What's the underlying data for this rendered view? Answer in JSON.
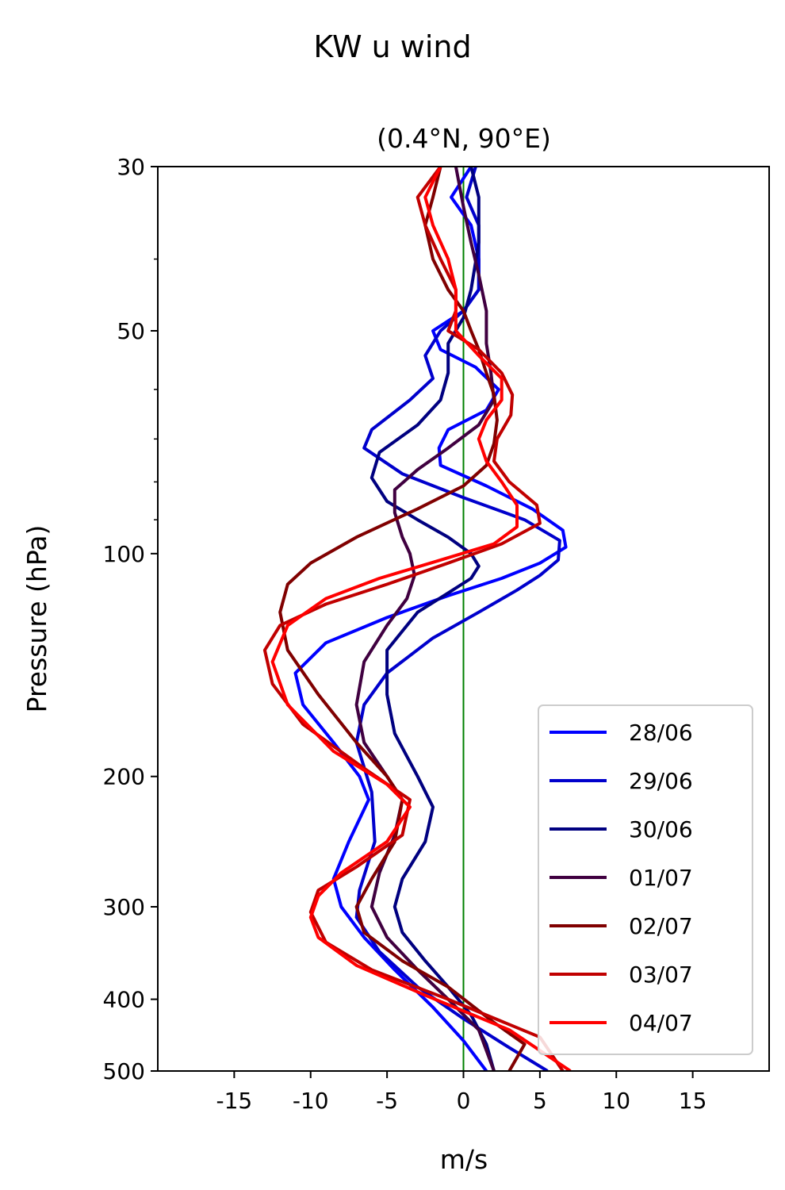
{
  "chart_data": {
    "type": "line",
    "title": "KW u wind",
    "subtitle": "(0.4°N, 90°E)",
    "xlabel": "m/s",
    "ylabel": "Pressure (hPa)",
    "xlim": [
      -20,
      20
    ],
    "ylim": [
      500,
      30
    ],
    "y_scale": "log",
    "x_ticks": [
      -15,
      -10,
      -5,
      0,
      5,
      10,
      15
    ],
    "y_ticks": [
      30,
      50,
      100,
      200,
      300,
      400,
      500
    ],
    "zero_line_color": "#008000",
    "legend": "lower right",
    "grid": false,
    "series": [
      {
        "name": "28/06",
        "color": "#0000ff",
        "points": [
          [
            0.5,
            30
          ],
          [
            -0.8,
            33
          ],
          [
            0.5,
            36
          ],
          [
            1,
            40
          ],
          [
            1,
            44
          ],
          [
            0,
            47
          ],
          [
            -2,
            50
          ],
          [
            -1.5,
            53
          ],
          [
            0.8,
            56
          ],
          [
            2.3,
            60
          ],
          [
            1.5,
            64
          ],
          [
            -1,
            68
          ],
          [
            -1.6,
            72
          ],
          [
            -1.5,
            76
          ],
          [
            1.5,
            81
          ],
          [
            4.5,
            87
          ],
          [
            6.5,
            93
          ],
          [
            6.7,
            98
          ],
          [
            5,
            103
          ],
          [
            2.5,
            108
          ],
          [
            -1,
            114
          ],
          [
            -5,
            122
          ],
          [
            -9,
            132
          ],
          [
            -11,
            145
          ],
          [
            -10.5,
            160
          ],
          [
            -8.5,
            180
          ],
          [
            -6.8,
            200
          ],
          [
            -6.2,
            215
          ],
          [
            -7.5,
            245
          ],
          [
            -8.5,
            275
          ],
          [
            -8,
            300
          ],
          [
            -6.5,
            330
          ],
          [
            -4.5,
            365
          ],
          [
            -2,
            410
          ],
          [
            0,
            455
          ],
          [
            1.5,
            500
          ]
        ]
      },
      {
        "name": "29/06",
        "color": "#0000cc",
        "points": [
          [
            0.8,
            30
          ],
          [
            0.2,
            33
          ],
          [
            1,
            36
          ],
          [
            1,
            40
          ],
          [
            1,
            44
          ],
          [
            0,
            47
          ],
          [
            -1.5,
            50
          ],
          [
            -2.5,
            54
          ],
          [
            -2,
            58
          ],
          [
            -3.5,
            62
          ],
          [
            -6,
            68
          ],
          [
            -6.5,
            72
          ],
          [
            -4,
            78
          ],
          [
            0,
            84
          ],
          [
            4,
            90
          ],
          [
            6.3,
            96
          ],
          [
            6.2,
            102
          ],
          [
            5,
            107
          ],
          [
            3.5,
            112
          ],
          [
            1,
            120
          ],
          [
            -2,
            130
          ],
          [
            -5,
            145
          ],
          [
            -6.5,
            160
          ],
          [
            -7,
            180
          ],
          [
            -6,
            210
          ],
          [
            -5.8,
            245
          ],
          [
            -6.8,
            285
          ],
          [
            -7,
            310
          ],
          [
            -5.5,
            345
          ],
          [
            -3,
            385
          ],
          [
            0,
            425
          ],
          [
            3,
            465
          ],
          [
            5.5,
            500
          ]
        ]
      },
      {
        "name": "30/06",
        "color": "#000080",
        "points": [
          [
            0.5,
            30
          ],
          [
            1,
            33
          ],
          [
            1,
            38
          ],
          [
            0.5,
            44
          ],
          [
            0,
            48
          ],
          [
            -1,
            52
          ],
          [
            -1,
            57
          ],
          [
            -1.5,
            62
          ],
          [
            -3,
            67
          ],
          [
            -5.5,
            73
          ],
          [
            -6,
            79
          ],
          [
            -5,
            85
          ],
          [
            -3,
            90
          ],
          [
            -1,
            95
          ],
          [
            0.5,
            100
          ],
          [
            1,
            104
          ],
          [
            0.5,
            108
          ],
          [
            -1,
            113
          ],
          [
            -3,
            120
          ],
          [
            -5,
            135
          ],
          [
            -5,
            155
          ],
          [
            -4.5,
            175
          ],
          [
            -3,
            200
          ],
          [
            -2,
            220
          ],
          [
            -2.5,
            245
          ],
          [
            -4,
            275
          ],
          [
            -4.5,
            300
          ],
          [
            -4,
            325
          ],
          [
            -2.5,
            355
          ],
          [
            -1,
            385
          ],
          [
            0.5,
            420
          ],
          [
            1.5,
            460
          ],
          [
            2,
            500
          ]
        ]
      },
      {
        "name": "01/07",
        "color": "#400040",
        "points": [
          [
            -0.5,
            30
          ],
          [
            0,
            34
          ],
          [
            0.5,
            38
          ],
          [
            1,
            42
          ],
          [
            1.5,
            47
          ],
          [
            1.5,
            52
          ],
          [
            1.8,
            57
          ],
          [
            2,
            62
          ],
          [
            1,
            67
          ],
          [
            -1,
            72
          ],
          [
            -3,
            77
          ],
          [
            -4.5,
            82
          ],
          [
            -4.5,
            88
          ],
          [
            -4,
            95
          ],
          [
            -3.5,
            100
          ],
          [
            -3.2,
            107
          ],
          [
            -3.7,
            115
          ],
          [
            -5,
            125
          ],
          [
            -6.5,
            140
          ],
          [
            -7,
            160
          ],
          [
            -6.5,
            180
          ],
          [
            -5,
            200
          ],
          [
            -4,
            215
          ],
          [
            -4.5,
            240
          ],
          [
            -5.5,
            270
          ],
          [
            -6,
            300
          ],
          [
            -5,
            330
          ],
          [
            -3,
            365
          ],
          [
            -1,
            400
          ],
          [
            1,
            440
          ],
          [
            2,
            500
          ]
        ]
      },
      {
        "name": "02/07",
        "color": "#800000",
        "points": [
          [
            -1.5,
            30
          ],
          [
            -2,
            33
          ],
          [
            -2.5,
            36
          ],
          [
            -2,
            40
          ],
          [
            -1,
            44
          ],
          [
            0,
            47
          ],
          [
            0.5,
            50
          ],
          [
            1,
            53
          ],
          [
            1.5,
            57
          ],
          [
            2,
            61
          ],
          [
            2.2,
            66
          ],
          [
            2,
            71
          ],
          [
            1.5,
            76
          ],
          [
            0,
            81
          ],
          [
            -3,
            87
          ],
          [
            -7,
            95
          ],
          [
            -10,
            103
          ],
          [
            -11.5,
            110
          ],
          [
            -12,
            120
          ],
          [
            -11.5,
            135
          ],
          [
            -9.5,
            155
          ],
          [
            -7,
            180
          ],
          [
            -5,
            200
          ],
          [
            -4,
            215
          ],
          [
            -4.5,
            245
          ],
          [
            -6,
            275
          ],
          [
            -7,
            300
          ],
          [
            -6.5,
            325
          ],
          [
            -4,
            355
          ],
          [
            -1,
            385
          ],
          [
            2,
            430
          ],
          [
            4,
            460
          ],
          [
            3,
            500
          ]
        ]
      },
      {
        "name": "03/07",
        "color": "#c00000",
        "points": [
          [
            -1.5,
            30
          ],
          [
            -3,
            33
          ],
          [
            -2.5,
            36
          ],
          [
            -1.5,
            40
          ],
          [
            -0.5,
            44
          ],
          [
            -0.5,
            47
          ],
          [
            -1,
            50
          ],
          [
            1,
            53
          ],
          [
            2.5,
            57
          ],
          [
            3.2,
            61
          ],
          [
            3.1,
            65
          ],
          [
            2.2,
            70
          ],
          [
            2,
            75
          ],
          [
            3,
            80
          ],
          [
            4.8,
            86
          ],
          [
            5,
            91
          ],
          [
            2.5,
            97
          ],
          [
            -1,
            103
          ],
          [
            -5,
            110
          ],
          [
            -9,
            117
          ],
          [
            -12,
            125
          ],
          [
            -13,
            135
          ],
          [
            -12.5,
            150
          ],
          [
            -10.5,
            170
          ],
          [
            -6.5,
            195
          ],
          [
            -3.5,
            215
          ],
          [
            -4,
            240
          ],
          [
            -7,
            265
          ],
          [
            -9.5,
            285
          ],
          [
            -10,
            305
          ],
          [
            -9,
            335
          ],
          [
            -6,
            365
          ],
          [
            -1,
            400
          ],
          [
            5,
            450
          ],
          [
            6.5,
            500
          ]
        ]
      },
      {
        "name": "04/07",
        "color": "#ff0000",
        "points": [
          [
            -1.5,
            30
          ],
          [
            -2.5,
            33
          ],
          [
            -2,
            36
          ],
          [
            -1,
            40
          ],
          [
            -0.5,
            44
          ],
          [
            -0.5,
            47
          ],
          [
            -0.5,
            50
          ],
          [
            1,
            54
          ],
          [
            2.5,
            58
          ],
          [
            2.5,
            62
          ],
          [
            1.5,
            66
          ],
          [
            1,
            70
          ],
          [
            1.5,
            75
          ],
          [
            2.5,
            80
          ],
          [
            3.5,
            86
          ],
          [
            3.5,
            92
          ],
          [
            2,
            97
          ],
          [
            -1.5,
            102
          ],
          [
            -5.5,
            108
          ],
          [
            -9,
            115
          ],
          [
            -11.5,
            125
          ],
          [
            -12.5,
            140
          ],
          [
            -11.5,
            160
          ],
          [
            -8.5,
            185
          ],
          [
            -5,
            205
          ],
          [
            -3.5,
            220
          ],
          [
            -5,
            245
          ],
          [
            -8,
            270
          ],
          [
            -9.5,
            290
          ],
          [
            -10,
            310
          ],
          [
            -9.5,
            330
          ],
          [
            -7,
            360
          ],
          [
            -2.5,
            395
          ],
          [
            3,
            440
          ],
          [
            7,
            500
          ]
        ]
      }
    ]
  }
}
